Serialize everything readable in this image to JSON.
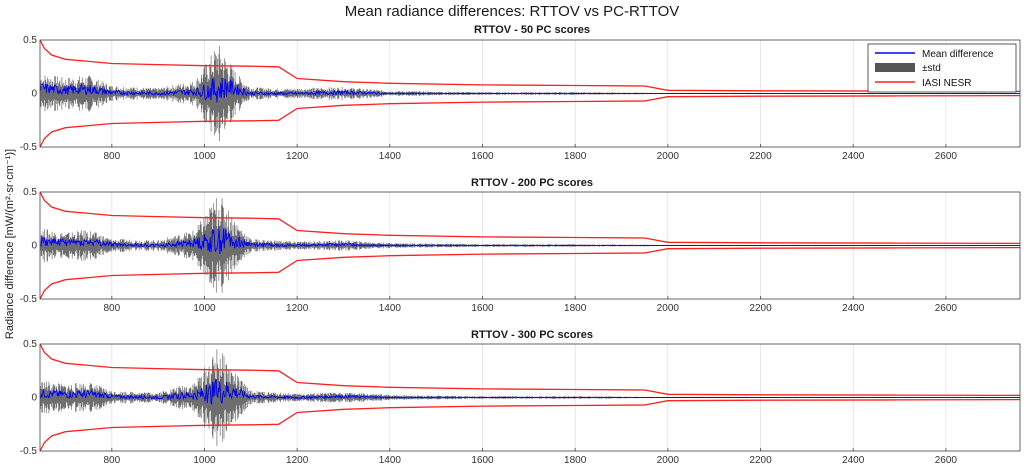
{
  "figure": {
    "title": "Mean radiance differences: RTTOV vs PC-RTTOV",
    "ylabel": "Radiance difference [mW/(m²·sr·cm⁻¹)]"
  },
  "legend": {
    "position": "top-right",
    "entries": [
      {
        "label": "Mean difference",
        "color": "#0000ff",
        "kind": "line"
      },
      {
        "label": "±std",
        "color": "#555555",
        "kind": "patch"
      },
      {
        "label": "IASI NESR",
        "color": "#ff2020",
        "kind": "line"
      }
    ]
  },
  "chart_data": [
    {
      "type": "line",
      "title": "RTTOV - 50 PC scores",
      "xlim": [
        645,
        2760
      ],
      "ylim": [
        -0.5,
        0.5
      ],
      "xticks": [
        800,
        1000,
        1200,
        1400,
        1600,
        1800,
        2000,
        2200,
        2400,
        2600
      ],
      "yticks": [
        -0.5,
        0,
        0.5
      ],
      "ytick_labels": [
        "-0.5",
        "0",
        "0.5"
      ],
      "grid": true,
      "series": [
        {
          "name": "Mean difference",
          "color": "#0000ff",
          "x": [
            650,
            700,
            750,
            800,
            900,
            1000,
            1050,
            1100,
            1200,
            1300,
            1400,
            1600,
            1800,
            2000,
            2200,
            2760
          ],
          "y": [
            0.05,
            0.03,
            0.04,
            0.01,
            0.0,
            0.02,
            0.06,
            0.0,
            0.0,
            0.01,
            0.0,
            0.0,
            0.0,
            0.0,
            0.0,
            0.0
          ]
        },
        {
          "name": "±std",
          "color": "#555555",
          "x": [
            650,
            700,
            750,
            800,
            900,
            980,
            1030,
            1070,
            1100,
            1150,
            1200,
            1300,
            1400,
            1600,
            1800,
            2000,
            2760
          ],
          "y": [
            0.15,
            0.12,
            0.14,
            0.06,
            0.04,
            0.1,
            0.38,
            0.15,
            0.05,
            0.04,
            0.04,
            0.05,
            0.02,
            0.01,
            0.01,
            0.004,
            0.003
          ]
        },
        {
          "name": "IASI NESR",
          "color": "#ff2020",
          "x": [
            645,
            655,
            670,
            700,
            750,
            800,
            900,
            1000,
            1100,
            1160,
            1200,
            1300,
            1400,
            1600,
            1800,
            1950,
            2000,
            2200,
            2500,
            2760
          ],
          "y": [
            0.5,
            0.42,
            0.36,
            0.32,
            0.3,
            0.28,
            0.27,
            0.26,
            0.255,
            0.25,
            0.14,
            0.11,
            0.095,
            0.08,
            0.075,
            0.07,
            0.03,
            0.025,
            0.022,
            0.02
          ]
        }
      ]
    },
    {
      "type": "line",
      "title": "RTTOV - 200 PC scores",
      "xlim": [
        645,
        2760
      ],
      "ylim": [
        -0.5,
        0.5
      ],
      "xticks": [
        800,
        1000,
        1200,
        1400,
        1600,
        1800,
        2000,
        2200,
        2400,
        2600
      ],
      "yticks": [
        -0.5,
        0,
        0.5
      ],
      "ytick_labels": [
        "-0.5",
        "0",
        "0.5"
      ],
      "grid": true,
      "series": [
        {
          "name": "Mean difference",
          "color": "#0000ff",
          "x": [
            650,
            700,
            750,
            800,
            900,
            1000,
            1050,
            1100,
            1200,
            1300,
            1400,
            1600,
            1800,
            2000,
            2200,
            2760
          ],
          "y": [
            0.04,
            0.03,
            0.03,
            0.01,
            0.0,
            0.03,
            0.06,
            0.01,
            0.0,
            0.01,
            0.0,
            0.0,
            0.0,
            0.0,
            0.0,
            0.0
          ]
        },
        {
          "name": "±std",
          "color": "#555555",
          "x": [
            650,
            700,
            750,
            800,
            900,
            980,
            1030,
            1070,
            1100,
            1150,
            1200,
            1300,
            1400,
            1600,
            1800,
            2000,
            2760
          ],
          "y": [
            0.13,
            0.1,
            0.12,
            0.05,
            0.04,
            0.12,
            0.4,
            0.18,
            0.05,
            0.04,
            0.03,
            0.04,
            0.02,
            0.01,
            0.01,
            0.004,
            0.003
          ]
        },
        {
          "name": "IASI NESR",
          "color": "#ff2020",
          "x": [
            645,
            655,
            670,
            700,
            750,
            800,
            900,
            1000,
            1100,
            1160,
            1200,
            1300,
            1400,
            1600,
            1800,
            1950,
            2000,
            2200,
            2500,
            2760
          ],
          "y": [
            0.5,
            0.42,
            0.36,
            0.32,
            0.3,
            0.28,
            0.27,
            0.26,
            0.255,
            0.25,
            0.14,
            0.11,
            0.095,
            0.08,
            0.075,
            0.07,
            0.03,
            0.025,
            0.022,
            0.02
          ]
        }
      ]
    },
    {
      "type": "line",
      "title": "RTTOV - 300 PC scores",
      "xlim": [
        645,
        2760
      ],
      "ylim": [
        -0.5,
        0.5
      ],
      "xticks": [
        800,
        1000,
        1200,
        1400,
        1600,
        1800,
        2000,
        2200,
        2400,
        2600
      ],
      "yticks": [
        -0.5,
        0,
        0.5
      ],
      "ytick_labels": [
        "-0.5",
        "0",
        "0.5"
      ],
      "grid": true,
      "series": [
        {
          "name": "Mean difference",
          "color": "#0000ff",
          "x": [
            650,
            700,
            750,
            800,
            900,
            1000,
            1050,
            1100,
            1200,
            1300,
            1400,
            1600,
            1800,
            2000,
            2200,
            2760
          ],
          "y": [
            0.04,
            0.03,
            0.03,
            0.01,
            0.0,
            0.03,
            0.07,
            0.01,
            0.0,
            0.01,
            0.0,
            0.0,
            0.0,
            0.0,
            0.0,
            0.0
          ]
        },
        {
          "name": "±std",
          "color": "#555555",
          "x": [
            650,
            700,
            750,
            800,
            900,
            980,
            1030,
            1070,
            1100,
            1150,
            1200,
            1300,
            1400,
            1600,
            1800,
            2000,
            2760
          ],
          "y": [
            0.13,
            0.1,
            0.12,
            0.05,
            0.04,
            0.12,
            0.38,
            0.17,
            0.05,
            0.04,
            0.03,
            0.04,
            0.02,
            0.01,
            0.01,
            0.004,
            0.003
          ]
        },
        {
          "name": "IASI NESR",
          "color": "#ff2020",
          "x": [
            645,
            655,
            670,
            700,
            750,
            800,
            900,
            1000,
            1100,
            1160,
            1200,
            1300,
            1400,
            1600,
            1800,
            1950,
            2000,
            2200,
            2500,
            2760
          ],
          "y": [
            0.5,
            0.42,
            0.36,
            0.32,
            0.3,
            0.28,
            0.27,
            0.26,
            0.255,
            0.25,
            0.14,
            0.11,
            0.095,
            0.08,
            0.075,
            0.07,
            0.03,
            0.025,
            0.022,
            0.02
          ]
        }
      ]
    }
  ]
}
